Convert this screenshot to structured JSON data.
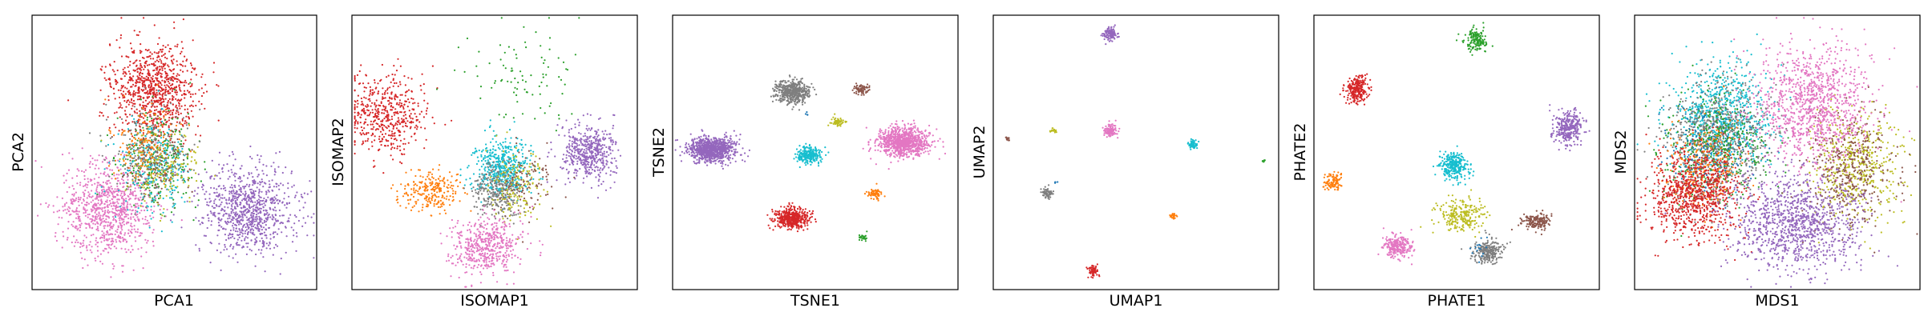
{
  "colors": [
    "#1f77b4",
    "#ff7f0e",
    "#2ca02c",
    "#d62728",
    "#9467bd",
    "#8c564b",
    "#e377c2",
    "#7f7f7f",
    "#bcbd22",
    "#17becf"
  ],
  "chart_data": [
    {
      "type": "scatter",
      "xlabel": "PCA1",
      "ylabel": "PCA2",
      "clusters": [
        {
          "color_index": 3,
          "cx": 0.43,
          "cy": 0.27,
          "sx": 0.075,
          "sy": 0.085,
          "n": 900
        },
        {
          "color_index": 6,
          "cx": 0.27,
          "cy": 0.71,
          "sx": 0.08,
          "sy": 0.085,
          "n": 900
        },
        {
          "color_index": 4,
          "cx": 0.76,
          "cy": 0.71,
          "sx": 0.085,
          "sy": 0.08,
          "n": 900
        },
        {
          "color_index": 2,
          "cx": 0.44,
          "cy": 0.52,
          "sx": 0.07,
          "sy": 0.08,
          "n": 250
        },
        {
          "color_index": 9,
          "cx": 0.43,
          "cy": 0.55,
          "sx": 0.07,
          "sy": 0.08,
          "n": 250
        },
        {
          "color_index": 7,
          "cx": 0.42,
          "cy": 0.5,
          "sx": 0.065,
          "sy": 0.075,
          "n": 200
        },
        {
          "color_index": 1,
          "cx": 0.4,
          "cy": 0.48,
          "sx": 0.06,
          "sy": 0.07,
          "n": 150
        },
        {
          "color_index": 8,
          "cx": 0.46,
          "cy": 0.56,
          "sx": 0.06,
          "sy": 0.07,
          "n": 150
        },
        {
          "color_index": 5,
          "cx": 0.44,
          "cy": 0.53,
          "sx": 0.06,
          "sy": 0.07,
          "n": 120
        }
      ]
    },
    {
      "type": "scatter",
      "xlabel": "ISOMAP1",
      "ylabel": "ISOMAP2",
      "clusters": [
        {
          "color_index": 3,
          "cx": 0.12,
          "cy": 0.36,
          "sx": 0.07,
          "sy": 0.07,
          "n": 500
        },
        {
          "color_index": 2,
          "cx": 0.62,
          "cy": 0.24,
          "sx": 0.11,
          "sy": 0.09,
          "n": 90
        },
        {
          "color_index": 4,
          "cx": 0.83,
          "cy": 0.5,
          "sx": 0.045,
          "sy": 0.05,
          "n": 500
        },
        {
          "color_index": 1,
          "cx": 0.28,
          "cy": 0.64,
          "sx": 0.05,
          "sy": 0.04,
          "n": 250
        },
        {
          "color_index": 9,
          "cx": 0.52,
          "cy": 0.56,
          "sx": 0.05,
          "sy": 0.05,
          "n": 500
        },
        {
          "color_index": 7,
          "cx": 0.51,
          "cy": 0.64,
          "sx": 0.04,
          "sy": 0.05,
          "n": 300
        },
        {
          "color_index": 8,
          "cx": 0.58,
          "cy": 0.62,
          "sx": 0.05,
          "sy": 0.07,
          "n": 150
        },
        {
          "color_index": 5,
          "cx": 0.62,
          "cy": 0.6,
          "sx": 0.05,
          "sy": 0.06,
          "n": 100
        },
        {
          "color_index": 6,
          "cx": 0.47,
          "cy": 0.84,
          "sx": 0.06,
          "sy": 0.05,
          "n": 500
        }
      ]
    },
    {
      "type": "scatter",
      "xlabel": "TSNE1",
      "ylabel": "TSNE2",
      "clusters": [
        {
          "color_index": 4,
          "cx": 0.14,
          "cy": 0.49,
          "sx": 0.04,
          "sy": 0.022,
          "n": 900
        },
        {
          "color_index": 6,
          "cx": 0.81,
          "cy": 0.46,
          "sx": 0.045,
          "sy": 0.026,
          "n": 900
        },
        {
          "color_index": 7,
          "cx": 0.42,
          "cy": 0.28,
          "sx": 0.03,
          "sy": 0.02,
          "n": 500
        },
        {
          "color_index": 3,
          "cx": 0.42,
          "cy": 0.74,
          "sx": 0.028,
          "sy": 0.018,
          "n": 500
        },
        {
          "color_index": 9,
          "cx": 0.48,
          "cy": 0.51,
          "sx": 0.022,
          "sy": 0.015,
          "n": 250
        },
        {
          "color_index": 5,
          "cx": 0.66,
          "cy": 0.27,
          "sx": 0.012,
          "sy": 0.009,
          "n": 80
        },
        {
          "color_index": 8,
          "cx": 0.58,
          "cy": 0.39,
          "sx": 0.011,
          "sy": 0.008,
          "n": 60
        },
        {
          "color_index": 1,
          "cx": 0.71,
          "cy": 0.65,
          "sx": 0.012,
          "sy": 0.009,
          "n": 70
        },
        {
          "color_index": 2,
          "cx": 0.67,
          "cy": 0.81,
          "sx": 0.008,
          "sy": 0.006,
          "n": 25
        },
        {
          "color_index": 0,
          "cx": 0.47,
          "cy": 0.36,
          "sx": 0.004,
          "sy": 0.004,
          "n": 4
        }
      ]
    },
    {
      "type": "scatter",
      "xlabel": "UMAP1",
      "ylabel": "UMAP2",
      "clusters": [
        {
          "color_index": 4,
          "cx": 0.41,
          "cy": 0.07,
          "sx": 0.012,
          "sy": 0.012,
          "n": 120
        },
        {
          "color_index": 6,
          "cx": 0.41,
          "cy": 0.42,
          "sx": 0.012,
          "sy": 0.012,
          "n": 120
        },
        {
          "color_index": 9,
          "cx": 0.7,
          "cy": 0.47,
          "sx": 0.008,
          "sy": 0.008,
          "n": 60
        },
        {
          "color_index": 7,
          "cx": 0.19,
          "cy": 0.65,
          "sx": 0.009,
          "sy": 0.009,
          "n": 70
        },
        {
          "color_index": 3,
          "cx": 0.35,
          "cy": 0.93,
          "sx": 0.009,
          "sy": 0.009,
          "n": 70
        },
        {
          "color_index": 1,
          "cx": 0.63,
          "cy": 0.73,
          "sx": 0.005,
          "sy": 0.005,
          "n": 25
        },
        {
          "color_index": 8,
          "cx": 0.21,
          "cy": 0.42,
          "sx": 0.005,
          "sy": 0.004,
          "n": 20
        },
        {
          "color_index": 5,
          "cx": 0.05,
          "cy": 0.45,
          "sx": 0.004,
          "sy": 0.004,
          "n": 15
        },
        {
          "color_index": 2,
          "cx": 0.95,
          "cy": 0.53,
          "sx": 0.003,
          "sy": 0.003,
          "n": 10
        },
        {
          "color_index": 0,
          "cx": 0.22,
          "cy": 0.61,
          "sx": 0.003,
          "sy": 0.003,
          "n": 4
        }
      ]
    },
    {
      "type": "scatter",
      "xlabel": "PHATE1",
      "ylabel": "PHATE2",
      "clusters": [
        {
          "color_index": 3,
          "cx": 0.15,
          "cy": 0.27,
          "sx": 0.02,
          "sy": 0.025,
          "n": 250
        },
        {
          "color_index": 2,
          "cx": 0.57,
          "cy": 0.09,
          "sx": 0.02,
          "sy": 0.02,
          "n": 150
        },
        {
          "color_index": 4,
          "cx": 0.89,
          "cy": 0.41,
          "sx": 0.025,
          "sy": 0.03,
          "n": 300
        },
        {
          "color_index": 9,
          "cx": 0.49,
          "cy": 0.55,
          "sx": 0.025,
          "sy": 0.025,
          "n": 300
        },
        {
          "color_index": 1,
          "cx": 0.07,
          "cy": 0.61,
          "sx": 0.015,
          "sy": 0.015,
          "n": 100
        },
        {
          "color_index": 8,
          "cx": 0.52,
          "cy": 0.73,
          "sx": 0.04,
          "sy": 0.03,
          "n": 250
        },
        {
          "color_index": 5,
          "cx": 0.78,
          "cy": 0.75,
          "sx": 0.025,
          "sy": 0.015,
          "n": 180
        },
        {
          "color_index": 6,
          "cx": 0.29,
          "cy": 0.84,
          "sx": 0.025,
          "sy": 0.022,
          "n": 250
        },
        {
          "color_index": 7,
          "cx": 0.61,
          "cy": 0.86,
          "sx": 0.025,
          "sy": 0.022,
          "n": 250
        },
        {
          "color_index": 0,
          "cx": 0.58,
          "cy": 0.85,
          "sx": 0.02,
          "sy": 0.02,
          "n": 15
        }
      ]
    },
    {
      "type": "scatter",
      "xlabel": "MDS1",
      "ylabel": "MDS2",
      "clusters": [
        {
          "color_index": 9,
          "cx": 0.31,
          "cy": 0.37,
          "sx": 0.09,
          "sy": 0.1,
          "n": 800
        },
        {
          "color_index": 7,
          "cx": 0.3,
          "cy": 0.45,
          "sx": 0.09,
          "sy": 0.1,
          "n": 700
        },
        {
          "color_index": 2,
          "cx": 0.28,
          "cy": 0.48,
          "sx": 0.09,
          "sy": 0.1,
          "n": 400
        },
        {
          "color_index": 1,
          "cx": 0.24,
          "cy": 0.55,
          "sx": 0.07,
          "sy": 0.08,
          "n": 250
        },
        {
          "color_index": 0,
          "cx": 0.26,
          "cy": 0.5,
          "sx": 0.08,
          "sy": 0.09,
          "n": 150
        },
        {
          "color_index": 8,
          "cx": 0.78,
          "cy": 0.55,
          "sx": 0.08,
          "sy": 0.1,
          "n": 500
        },
        {
          "color_index": 5,
          "cx": 0.76,
          "cy": 0.56,
          "sx": 0.08,
          "sy": 0.1,
          "n": 400
        },
        {
          "color_index": 6,
          "cx": 0.62,
          "cy": 0.33,
          "sx": 0.1,
          "sy": 0.11,
          "n": 1100
        },
        {
          "color_index": 3,
          "cx": 0.21,
          "cy": 0.65,
          "sx": 0.08,
          "sy": 0.085,
          "n": 900
        },
        {
          "color_index": 4,
          "cx": 0.56,
          "cy": 0.75,
          "sx": 0.11,
          "sy": 0.09,
          "n": 1100
        }
      ]
    }
  ]
}
